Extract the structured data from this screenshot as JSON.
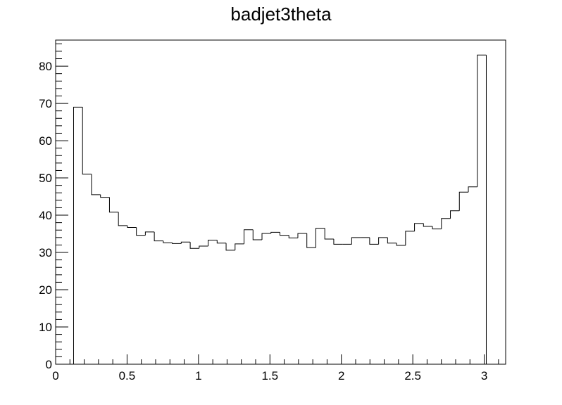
{
  "chart_data": {
    "type": "histogram",
    "title": "badjet3theta",
    "xlabel": "",
    "ylabel": "",
    "xlim": [
      0,
      3.15
    ],
    "ylim": [
      0,
      87
    ],
    "grid": false,
    "legend": "none",
    "x_tick_labels": [
      "0",
      "0.5",
      "1",
      "1.5",
      "2",
      "2.5",
      "3"
    ],
    "y_tick_labels": [
      "0",
      "10",
      "20",
      "30",
      "40",
      "50",
      "60",
      "70",
      "80"
    ],
    "bin_width": 0.0628,
    "bin_start": 0,
    "values": [
      0,
      0,
      69,
      51,
      45.5,
      44.8,
      40.8,
      37.2,
      36.7,
      34.6,
      35.5,
      33.1,
      32.6,
      32.4,
      32.8,
      31.1,
      31.7,
      33.3,
      32.5,
      30.6,
      32.3,
      36.1,
      33.4,
      35.1,
      35.4,
      34.6,
      33.9,
      35.1,
      31.3,
      36.5,
      33.6,
      32.2,
      32.2,
      34.0,
      34.0,
      32.2,
      34.0,
      32.5,
      31.9,
      35.7,
      37.8,
      37.0,
      36.3,
      39.1,
      41.2,
      46.2,
      47.6,
      83.0,
      0,
      0
    ],
    "line_color": "#000000"
  }
}
